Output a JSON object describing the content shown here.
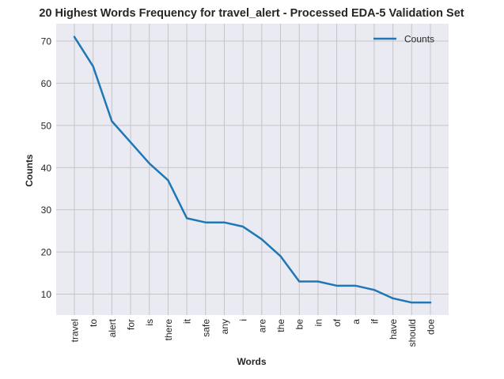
{
  "chart_data": {
    "type": "line",
    "title": "20 Highest Words Frequency for travel_alert - Processed EDA-5 Validation Set",
    "xlabel": "Words",
    "ylabel": "Counts",
    "categories": [
      "travel",
      "to",
      "alert",
      "for",
      "is",
      "there",
      "it",
      "safe",
      "any",
      "i",
      "are",
      "the",
      "be",
      "in",
      "of",
      "a",
      "if",
      "have",
      "should",
      "doe"
    ],
    "series": [
      {
        "name": "Counts",
        "values": [
          71,
          64,
          51,
          46,
          41,
          37,
          28,
          27,
          27,
          26,
          23,
          19,
          13,
          13,
          12,
          12,
          11,
          9,
          8,
          8
        ]
      }
    ],
    "ylim": [
      5,
      75
    ],
    "yticks": [
      10,
      20,
      30,
      40,
      50,
      60,
      70
    ],
    "grid": true,
    "legend_position": "top-right",
    "colors": {
      "line": "#1f77b4",
      "plot_background": "#eaeaf2",
      "grid": "#c4c4c8",
      "text": "#262626"
    }
  }
}
